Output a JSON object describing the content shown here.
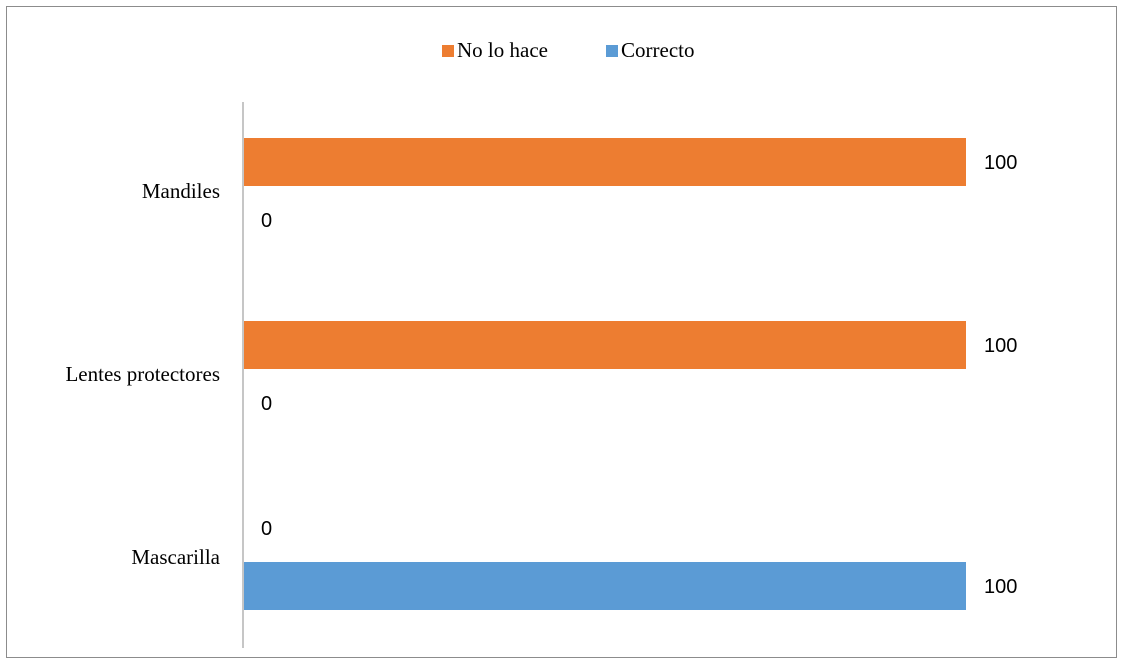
{
  "chart_data": {
    "type": "bar",
    "orientation": "horizontal",
    "categories": [
      "Mandiles",
      "Lentes protectores",
      "Mascarilla"
    ],
    "series": [
      {
        "name": "No lo hace",
        "color": "#ED7D31",
        "values": [
          100,
          100,
          0
        ]
      },
      {
        "name": "Correcto",
        "color": "#5B9BD5",
        "values": [
          0,
          0,
          100
        ]
      }
    ],
    "legend_position": "top",
    "xlim": [
      0,
      100
    ],
    "grid": false
  }
}
